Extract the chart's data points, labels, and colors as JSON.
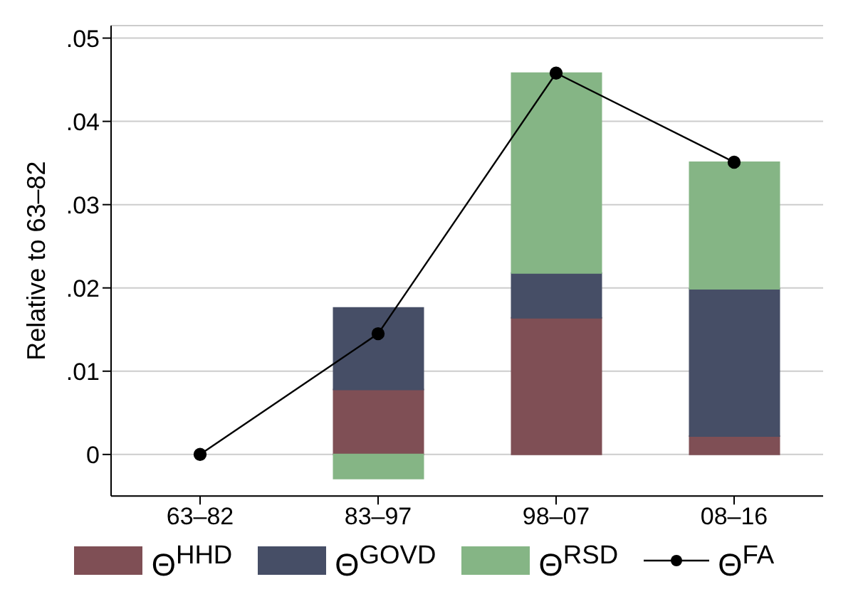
{
  "chart_data": {
    "type": "bar",
    "stacked": true,
    "ylabel": "Relative to 63–82",
    "categories": [
      "63–82",
      "83–97",
      "98–07",
      "08–16"
    ],
    "series": [
      {
        "name": "Θ$^{HHD}$",
        "color": "#7f4f55",
        "values": [
          0,
          0.0078,
          0.0164,
          0.0022
        ]
      },
      {
        "name": "Θ$^{GOVD}$",
        "color": "#464e66",
        "values": [
          0,
          0.0098,
          0.0054,
          0.0177
        ]
      },
      {
        "name": "Θ$^{RSD}$",
        "color": "#85b585",
        "values": [
          0,
          -0.0029,
          0.024,
          0.0152
        ]
      },
      {
        "name": "Θ$^{FA}$",
        "type": "line",
        "color": "#000000",
        "marker": "circle",
        "values": [
          0,
          0.0145,
          0.0458,
          0.0351
        ]
      }
    ],
    "ylim": [
      -0.005,
      0.0515
    ],
    "yticks": [
      {
        "value": 0,
        "label": "0"
      },
      {
        "value": 0.01,
        "label": ".01"
      },
      {
        "value": 0.02,
        "label": ".02"
      },
      {
        "value": 0.03,
        "label": ".03"
      },
      {
        "value": 0.04,
        "label": ".04"
      },
      {
        "value": 0.05,
        "label": ".05"
      }
    ],
    "grid": "y",
    "legend": "bottom"
  }
}
